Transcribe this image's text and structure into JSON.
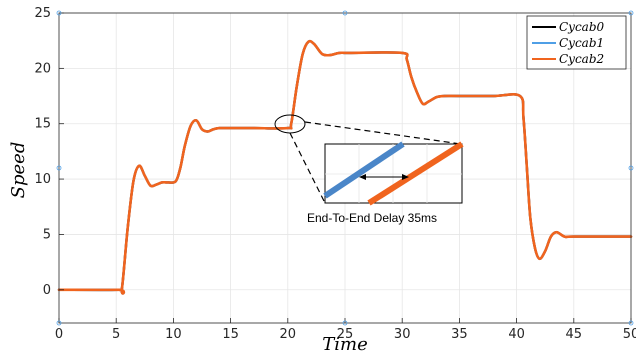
{
  "chart_data": {
    "type": "line",
    "title": "",
    "xlabel": "Time",
    "ylabel": "Speed",
    "xlim": [
      0,
      50
    ],
    "ylim": [
      -3,
      25
    ],
    "xticks": [
      0,
      5,
      10,
      15,
      20,
      25,
      30,
      35,
      40,
      45,
      50
    ],
    "yticks": [
      0,
      5,
      10,
      15,
      20,
      25
    ],
    "grid": true,
    "legend_position": "top-right",
    "series": [
      {
        "name": "Cycab0",
        "color": "#000000",
        "x": [
          0,
          5.2,
          5.5,
          6.0,
          6.5,
          7.0,
          7.5,
          8.0,
          8.5,
          9.0,
          9.5,
          10.2,
          10.6,
          11.0,
          11.5,
          12.0,
          12.5,
          13.0,
          13.5,
          14.0,
          15.0,
          17.0,
          20.0,
          20.3,
          20.8,
          21.3,
          21.8,
          22.3,
          23.0,
          23.7,
          24.5,
          25.5,
          30.0,
          30.4,
          30.8,
          31.3,
          31.8,
          32.3,
          33.0,
          33.7,
          35.0,
          38.0,
          40.3,
          40.6,
          40.9,
          41.2,
          41.6,
          42.0,
          42.5,
          43.0,
          43.5,
          44.2,
          45.0,
          50.0
        ],
        "y": [
          0,
          0,
          0.1,
          5.5,
          9.8,
          11.2,
          10.3,
          9.4,
          9.5,
          9.7,
          9.7,
          9.8,
          11.0,
          13.0,
          14.8,
          15.3,
          14.5,
          14.3,
          14.5,
          14.6,
          14.6,
          14.6,
          14.6,
          15.0,
          18.5,
          21.3,
          22.4,
          22.2,
          21.3,
          21.2,
          21.4,
          21.4,
          21.4,
          20.8,
          19.2,
          17.8,
          16.8,
          17.0,
          17.4,
          17.5,
          17.5,
          17.5,
          17.5,
          15.5,
          11.0,
          6.5,
          3.8,
          2.8,
          3.5,
          4.8,
          5.2,
          4.8,
          4.8,
          4.8
        ]
      },
      {
        "name": "Cycab1",
        "color": "#4f9fe6",
        "x": [
          0,
          5.2,
          5.5,
          6.0,
          6.5,
          7.0,
          7.5,
          8.0,
          8.5,
          9.0,
          9.5,
          10.2,
          10.6,
          11.0,
          11.5,
          12.0,
          12.5,
          13.0,
          13.5,
          14.0,
          15.0,
          17.0,
          20.0,
          20.3,
          20.8,
          21.3,
          21.8,
          22.3,
          23.0,
          23.7,
          24.5,
          25.5,
          30.0,
          30.4,
          30.8,
          31.3,
          31.8,
          32.3,
          33.0,
          33.7,
          35.0,
          38.0,
          40.3,
          40.6,
          40.9,
          41.2,
          41.6,
          42.0,
          42.5,
          43.0,
          43.5,
          44.2,
          45.0,
          50.0
        ],
        "y": [
          0,
          0,
          0.1,
          5.5,
          9.8,
          11.2,
          10.3,
          9.4,
          9.5,
          9.7,
          9.7,
          9.8,
          11.0,
          13.0,
          14.8,
          15.3,
          14.5,
          14.3,
          14.5,
          14.6,
          14.6,
          14.6,
          14.6,
          15.0,
          18.5,
          21.3,
          22.4,
          22.2,
          21.3,
          21.2,
          21.4,
          21.4,
          21.4,
          20.8,
          19.2,
          17.8,
          16.8,
          17.0,
          17.4,
          17.5,
          17.5,
          17.5,
          17.5,
          15.5,
          11.0,
          6.5,
          3.8,
          2.8,
          3.5,
          4.8,
          5.2,
          4.8,
          4.8,
          4.8
        ]
      },
      {
        "name": "Cycab2",
        "color": "#f0641e",
        "x": [
          0,
          5.2,
          5.5,
          6.0,
          6.5,
          7.0,
          7.5,
          8.0,
          8.5,
          9.0,
          9.5,
          10.2,
          10.6,
          11.0,
          11.5,
          12.0,
          12.5,
          13.0,
          13.5,
          14.0,
          15.0,
          17.0,
          20.0,
          20.3,
          20.8,
          21.3,
          21.8,
          22.3,
          23.0,
          23.7,
          24.5,
          25.5,
          30.0,
          30.4,
          30.8,
          31.3,
          31.8,
          32.3,
          33.0,
          33.7,
          35.0,
          38.0,
          40.3,
          40.6,
          40.9,
          41.2,
          41.6,
          42.0,
          42.5,
          43.0,
          43.5,
          44.2,
          45.0,
          50.0
        ],
        "y": [
          0,
          0,
          0.1,
          5.5,
          9.8,
          11.2,
          10.3,
          9.4,
          9.5,
          9.7,
          9.7,
          9.8,
          11.0,
          13.0,
          14.8,
          15.3,
          14.5,
          14.3,
          14.5,
          14.6,
          14.6,
          14.6,
          14.6,
          15.0,
          18.5,
          21.3,
          22.4,
          22.2,
          21.3,
          21.2,
          21.4,
          21.4,
          21.4,
          20.8,
          19.2,
          17.8,
          16.8,
          17.0,
          17.4,
          17.5,
          17.5,
          17.5,
          17.5,
          15.5,
          11.0,
          6.5,
          3.8,
          2.8,
          3.5,
          4.8,
          5.2,
          4.8,
          4.8,
          4.8
        ]
      }
    ],
    "annotation": {
      "text": "End-To-End Delay 35ms",
      "focus_x": 20.3,
      "focus_y": 15.0
    }
  }
}
